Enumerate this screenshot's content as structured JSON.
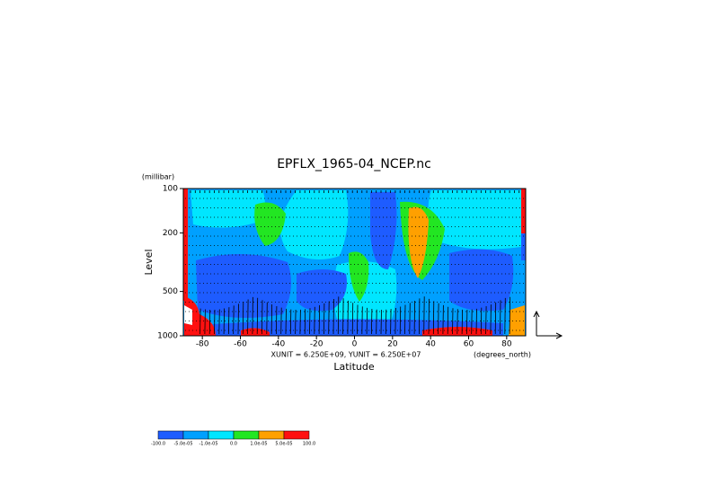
{
  "chart_data": {
    "type": "contour",
    "title": "EPFLX_1965-04_NCEP.nc",
    "y_unit": "(millibar)",
    "ylabel": "Level",
    "xlabel": "Latitude",
    "x_unit": "(degrees_north)",
    "vector_scale": "XUNIT = 6.250E+09, YUNIT = 6.250E+07",
    "xlim": [
      -90,
      90
    ],
    "xticks": [
      -80,
      -60,
      -40,
      -20,
      0,
      20,
      40,
      60,
      80
    ],
    "ylim": [
      1000,
      100
    ],
    "yticks": [
      100,
      200,
      500,
      1000
    ],
    "ylog": true,
    "colorbar": {
      "levels": [
        {
          "value": -100,
          "label": "-100.0"
        },
        {
          "value": -5e-05,
          "label": "-5.0e-05"
        },
        {
          "value": -1e-05,
          "label": "-1.0e-05"
        },
        {
          "value": 0,
          "label": "0.0"
        },
        {
          "value": 1e-05,
          "label": "1.0e-05"
        },
        {
          "value": 5e-05,
          "label": "5.0e-05"
        },
        {
          "value": 100,
          "label": "100.0"
        }
      ],
      "colors": [
        "#1e5cff",
        "#00a0ff",
        "#00e6ff",
        "#22e622",
        "#ffa000",
        "#ff1010"
      ]
    }
  }
}
